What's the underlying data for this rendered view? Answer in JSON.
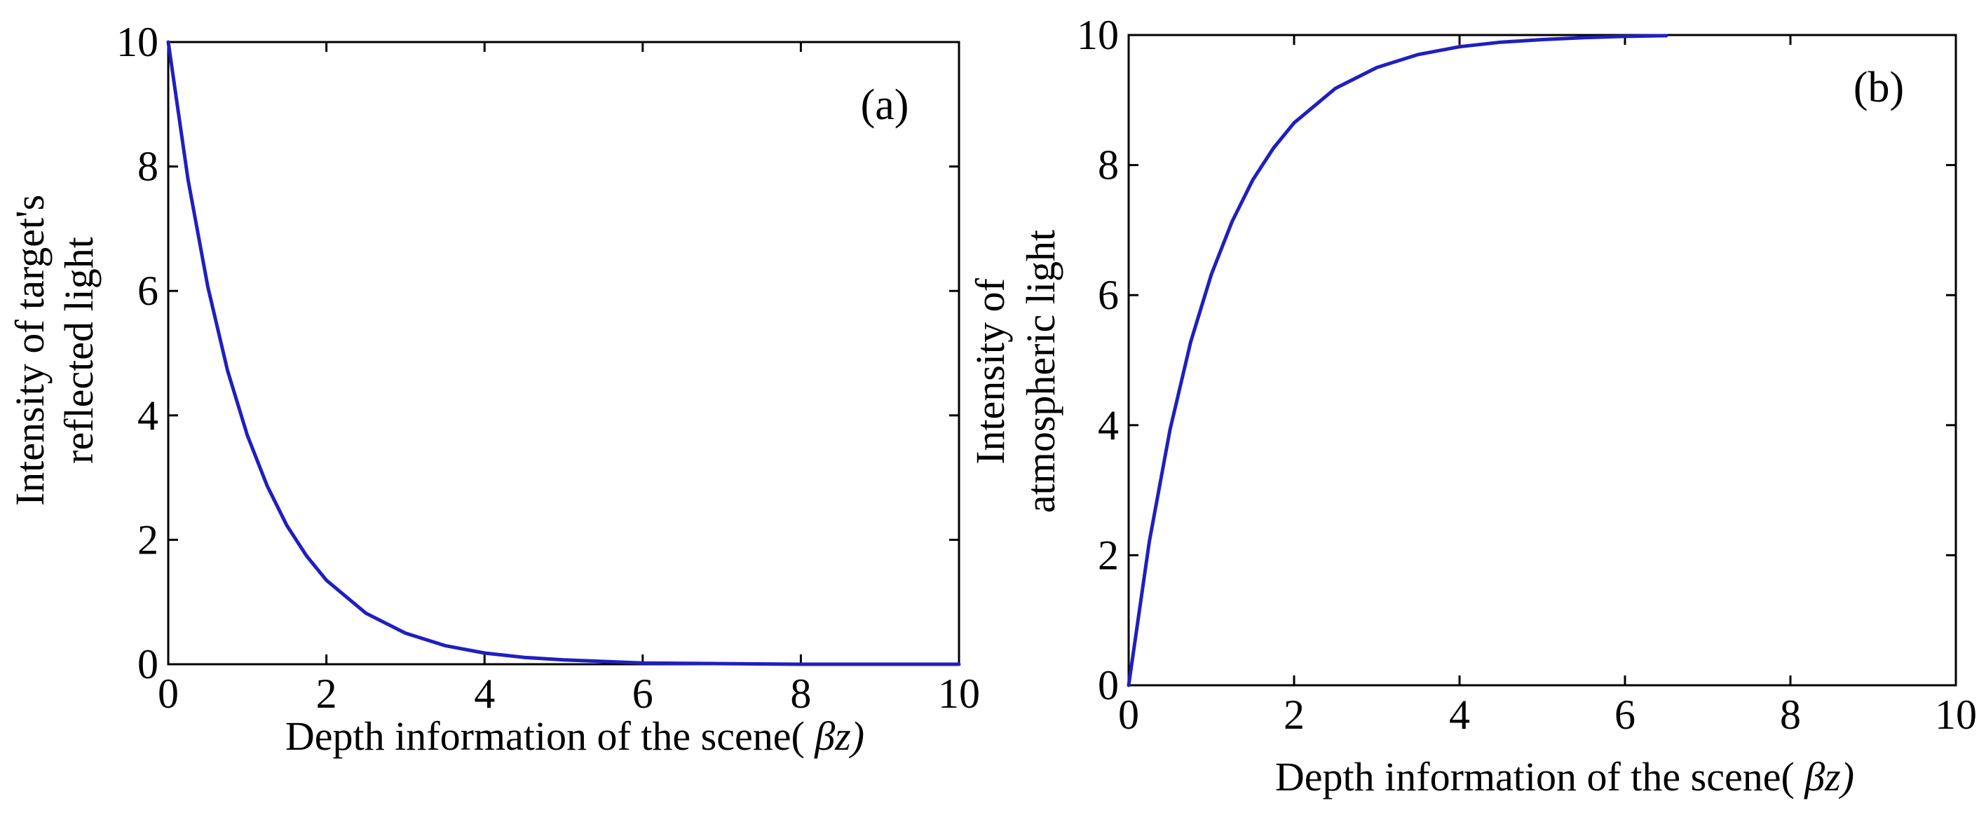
{
  "colors": {
    "series": "#1f1fbf",
    "axes": "#000000",
    "background": "#ffffff"
  },
  "chart_data": [
    {
      "type": "line",
      "panel_label": "(a)",
      "xlabel_text": "Depth information of the scene(",
      "xlabel_greek": "βz)",
      "ylabel_lines": [
        "Intensity of target's",
        "reflected light"
      ],
      "xlim": [
        0,
        10
      ],
      "ylim": [
        0,
        10
      ],
      "xticks": [
        "0",
        "2",
        "4",
        "6",
        "8",
        "10"
      ],
      "yticks": [
        "0",
        "2",
        "4",
        "6",
        "8",
        "10"
      ],
      "grid": false,
      "series": [
        {
          "x": [
            0,
            0.25,
            0.5,
            0.75,
            1,
            1.25,
            1.5,
            1.75,
            2,
            2.5,
            3,
            3.5,
            4,
            4.5,
            5,
            6,
            7,
            8,
            9,
            10
          ],
          "values": [
            10,
            7.79,
            6.07,
            4.72,
            3.68,
            2.87,
            2.23,
            1.74,
            1.35,
            0.82,
            0.5,
            0.3,
            0.18,
            0.11,
            0.07,
            0.02,
            0.01,
            0.0,
            0.0,
            0.0
          ]
        }
      ]
    },
    {
      "type": "line",
      "panel_label": "(b)",
      "xlabel_text": "Depth information of the scene(",
      "xlabel_greek": "βz)",
      "ylabel_lines": [
        "Intensity of",
        "atmospheric light"
      ],
      "xlim": [
        0,
        10
      ],
      "ylim": [
        0,
        10
      ],
      "xticks": [
        "0",
        "2",
        "4",
        "6",
        "8",
        "10"
      ],
      "yticks": [
        "0",
        "2",
        "4",
        "6",
        "8",
        "10"
      ],
      "grid": false,
      "series": [
        {
          "x": [
            0,
            0.25,
            0.5,
            0.75,
            1,
            1.25,
            1.5,
            1.75,
            2,
            2.5,
            3,
            3.5,
            4,
            4.5,
            5,
            5.5,
            6,
            6.5
          ],
          "values": [
            0,
            2.21,
            3.93,
            5.28,
            6.32,
            7.13,
            7.77,
            8.26,
            8.65,
            9.18,
            9.5,
            9.7,
            9.82,
            9.89,
            9.93,
            9.96,
            9.98,
            9.99
          ]
        }
      ]
    }
  ]
}
